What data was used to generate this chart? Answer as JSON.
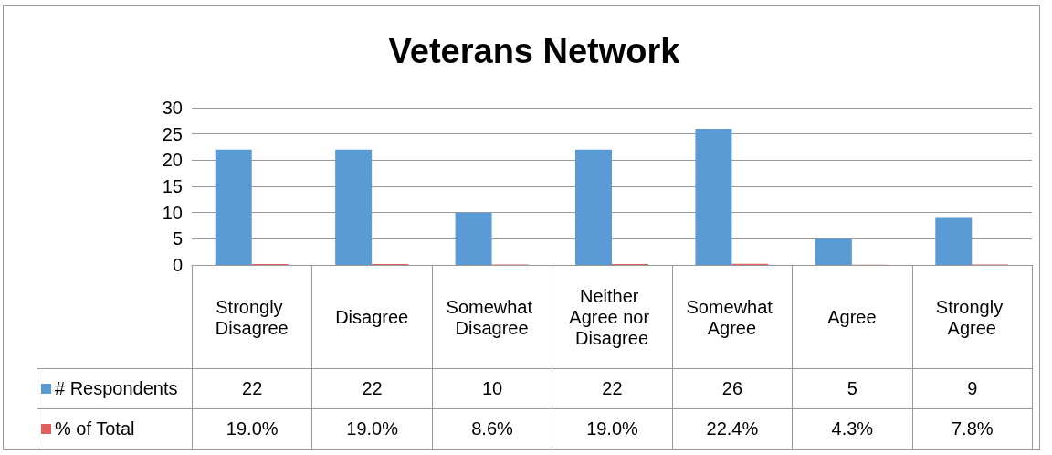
{
  "chart_data": {
    "type": "bar",
    "title": "Veterans Network",
    "categories": [
      "Strongly Disagree",
      "Disagree",
      "Somewhat Disagree",
      "Neither Agree nor Disagree",
      "Somewhat Agree",
      "Agree",
      "Strongly Agree"
    ],
    "series": [
      {
        "name": "# Respondents",
        "color": "#5b9bd5",
        "values": [
          22,
          22,
          10,
          22,
          26,
          5,
          9
        ],
        "value_labels": [
          "22",
          "22",
          "10",
          "22",
          "26",
          "5",
          "9"
        ]
      },
      {
        "name": "% of Total",
        "color": "#e06060",
        "values": [
          0.19,
          0.19,
          0.086,
          0.19,
          0.224,
          0.043,
          0.078
        ],
        "value_labels": [
          "19.0%",
          "19.0%",
          "8.6%",
          "19.0%",
          "22.4%",
          "4.3%",
          "7.8%"
        ]
      }
    ],
    "ylim": [
      0,
      30
    ],
    "yticks": [
      0,
      5,
      10,
      15,
      20,
      25,
      30
    ],
    "grid": true,
    "legend": "bottom left"
  }
}
